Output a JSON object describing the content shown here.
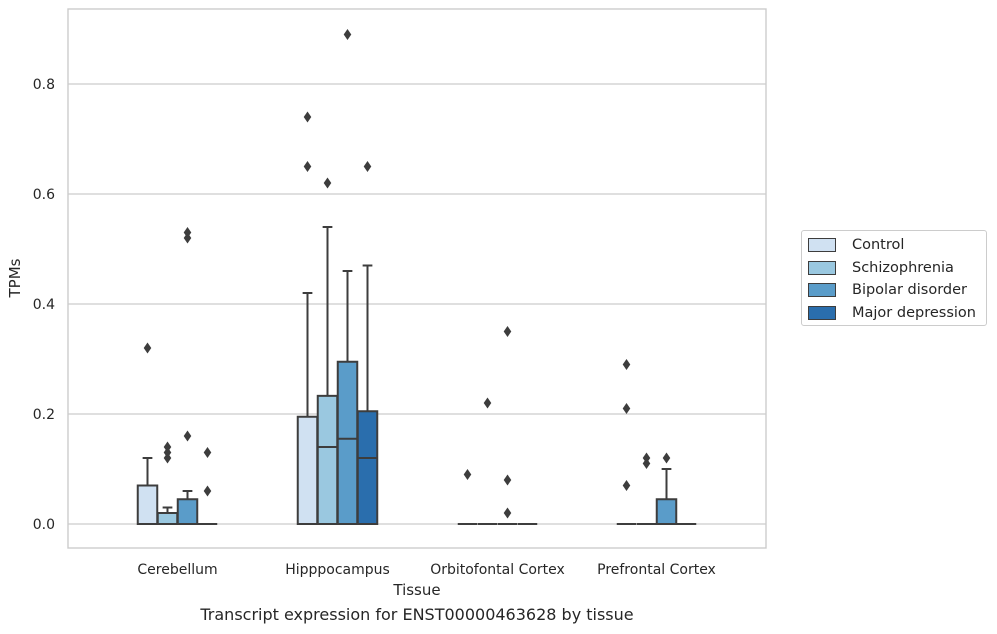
{
  "chart_data": {
    "type": "box",
    "caption": "Transcript expression for ENST00000463628 by tissue",
    "xlabel": "Tissue",
    "ylabel": "TPMs",
    "ylim": [
      -0.045,
      0.935
    ],
    "yticks": [
      0.0,
      0.2,
      0.4,
      0.6,
      0.8
    ],
    "ytick_labels": [
      "0.0",
      "0.2",
      "0.4",
      "0.6",
      "0.8"
    ],
    "grid": true,
    "legend_position": "right",
    "categories": [
      "Cerebellum",
      "Hipppocampus",
      "Orbitofontal Cortex",
      "Prefrontal Cortex"
    ],
    "series": [
      {
        "name": "Control",
        "color": "#d0e1f2",
        "boxes": [
          {
            "q1": 0.0,
            "median": 0.0,
            "q3": 0.07,
            "whisker_low": 0.0,
            "whisker_high": 0.12,
            "outliers": [
              0.32
            ]
          },
          {
            "q1": 0.0,
            "median": 0.0,
            "q3": 0.195,
            "whisker_low": 0.0,
            "whisker_high": 0.42,
            "outliers": [
              0.65,
              0.74
            ]
          },
          {
            "q1": 0.0,
            "median": 0.0,
            "q3": 0.0,
            "whisker_low": 0.0,
            "whisker_high": 0.0,
            "outliers": [
              0.09
            ]
          },
          {
            "q1": 0.0,
            "median": 0.0,
            "q3": 0.0,
            "whisker_low": 0.0,
            "whisker_high": 0.0,
            "outliers": [
              0.07,
              0.21,
              0.29
            ]
          }
        ]
      },
      {
        "name": "Schizophrenia",
        "color": "#9ac8e0",
        "boxes": [
          {
            "q1": 0.0,
            "median": 0.0,
            "q3": 0.02,
            "whisker_low": 0.0,
            "whisker_high": 0.03,
            "outliers": [
              0.12,
              0.13,
              0.14
            ]
          },
          {
            "q1": 0.0,
            "median": 0.14,
            "q3": 0.233,
            "whisker_low": 0.0,
            "whisker_high": 0.54,
            "outliers": [
              0.62
            ]
          },
          {
            "q1": 0.0,
            "median": 0.0,
            "q3": 0.0,
            "whisker_low": 0.0,
            "whisker_high": 0.0,
            "outliers": [
              0.22
            ]
          },
          {
            "q1": 0.0,
            "median": 0.0,
            "q3": 0.0,
            "whisker_low": 0.0,
            "whisker_high": 0.0,
            "outliers": [
              0.11,
              0.12
            ]
          }
        ]
      },
      {
        "name": "Bipolar disorder",
        "color": "#5a9cc9",
        "boxes": [
          {
            "q1": 0.0,
            "median": 0.0,
            "q3": 0.045,
            "whisker_low": 0.0,
            "whisker_high": 0.06,
            "outliers": [
              0.16,
              0.52,
              0.53
            ]
          },
          {
            "q1": 0.0,
            "median": 0.155,
            "q3": 0.295,
            "whisker_low": 0.0,
            "whisker_high": 0.46,
            "outliers": [
              0.89
            ]
          },
          {
            "q1": 0.0,
            "median": 0.0,
            "q3": 0.0,
            "whisker_low": 0.0,
            "whisker_high": 0.0,
            "outliers": [
              0.02,
              0.08,
              0.35
            ]
          },
          {
            "q1": 0.0,
            "median": 0.0,
            "q3": 0.045,
            "whisker_low": 0.0,
            "whisker_high": 0.1,
            "outliers": [
              0.12
            ]
          }
        ]
      },
      {
        "name": "Major depression",
        "color": "#2a6ead",
        "boxes": [
          {
            "q1": 0.0,
            "median": 0.0,
            "q3": 0.0,
            "whisker_low": 0.0,
            "whisker_high": 0.0,
            "outliers": [
              0.06,
              0.13
            ]
          },
          {
            "q1": 0.0,
            "median": 0.12,
            "q3": 0.205,
            "whisker_low": 0.0,
            "whisker_high": 0.47,
            "outliers": [
              0.65
            ]
          },
          {
            "q1": 0.0,
            "median": 0.0,
            "q3": 0.0,
            "whisker_low": 0.0,
            "whisker_high": 0.0,
            "outliers": []
          },
          {
            "q1": 0.0,
            "median": 0.0,
            "q3": 0.0,
            "whisker_low": 0.0,
            "whisker_high": 0.0,
            "outliers": []
          }
        ]
      }
    ]
  }
}
